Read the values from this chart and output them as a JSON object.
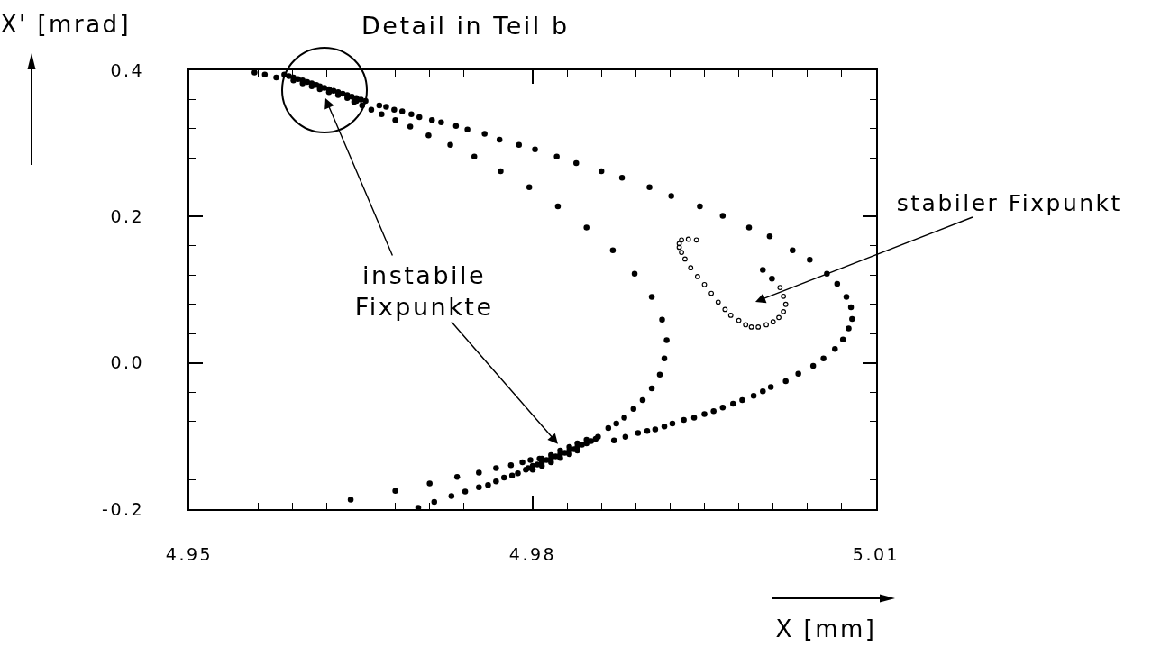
{
  "chart_data": {
    "type": "scatter",
    "xlabel": "X [mm]",
    "ylabel": "X' [mrad]",
    "annotations": [
      "Detail in Teil b",
      {
        "text": "instabile\nFixpunkte",
        "x": 4.9822,
        "y": -0.111
      },
      "stabiler Fixpunkt"
    ],
    "xlim": [
      4.95,
      5.01
    ],
    "xticks": [
      4.95,
      {
        "value": 4.953,
        "label": null
      },
      {
        "value": 4.956,
        "label": null
      },
      {
        "value": 4.959,
        "label": null
      },
      {
        "value": 4.962,
        "label": null
      },
      {
        "value": 4.965,
        "label": null
      },
      {
        "value": 4.968,
        "label": null
      },
      {
        "value": 4.971,
        "label": null
      },
      {
        "value": 4.974,
        "label": null
      },
      {
        "value": 4.977,
        "label": null
      },
      4.98,
      {
        "value": 4.983,
        "label": null
      },
      {
        "value": 4.986,
        "label": null
      },
      {
        "value": 4.989,
        "label": null
      },
      {
        "value": 4.992,
        "label": null
      },
      {
        "value": 4.995,
        "label": null
      },
      {
        "value": 4.998,
        "label": null
      },
      {
        "value": 5.001,
        "label": null
      },
      {
        "value": 5.004,
        "label": null
      },
      {
        "value": 5.007,
        "label": null
      },
      5.01
    ],
    "ylim": [
      -0.2,
      0.4
    ],
    "yticks": [
      -0.2,
      {
        "value": -0.16,
        "label": null
      },
      {
        "value": -0.12,
        "label": null
      },
      {
        "value": -0.08,
        "label": null
      },
      {
        "value": -0.04,
        "label": null
      },
      {
        "value": 0,
        "label": "0.0"
      },
      {
        "value": 0.04,
        "label": null
      },
      {
        "value": 0.08,
        "label": null
      },
      {
        "value": 0.12,
        "label": null
      },
      {
        "value": 0.16,
        "label": null
      },
      0.2,
      {
        "value": 0.24,
        "label": null
      },
      {
        "value": 0.28,
        "label": null
      },
      {
        "value": 0.32,
        "label": null
      },
      {
        "value": 0.36,
        "label": null
      },
      0.4
    ],
    "series": [
      {
        "color": "#000000",
        "marker": "circle",
        "x": [
          4.9557,
          4.9566,
          4.9576,
          4.9583,
          4.9587,
          4.9591,
          4.9595,
          4.9599,
          4.9603,
          4.9607,
          4.9611,
          4.9614,
          4.9618,
          4.9622,
          4.9626,
          4.963,
          4.9634,
          4.9638,
          4.9642,
          4.9646,
          4.965,
          4.9654,
          4.9591,
          4.9599,
          4.9607,
          4.9614,
          4.9622,
          4.963,
          4.9638,
          4.9646,
          4.9644,
          4.9651,
          4.9659,
          4.9668,
          4.968,
          4.9693,
          4.9709,
          4.9728,
          4.9749,
          4.9772,
          4.9797,
          4.9822,
          4.9847,
          4.987,
          4.9889,
          4.9904,
          4.9913,
          4.9917,
          4.9915,
          4.9911,
          4.9904,
          4.9896,
          4.9888,
          4.988,
          4.9873,
          4.9866,
          4.9857,
          4.9666,
          4.9672,
          4.9679,
          4.9686,
          4.9694,
          4.9701,
          4.9712,
          4.972,
          4.9733,
          4.9743,
          4.9758,
          4.9771,
          4.9788,
          4.9802,
          4.9821,
          4.9838,
          4.986,
          4.9878,
          4.9902,
          4.9921,
          4.9946,
          4.9966,
          4.9989,
          5.0007,
          5.0027,
          5.0042,
          5.0057,
          5.0066,
          5.0074,
          5.0078,
          5.0079,
          5.0076,
          5.0071,
          5.0064,
          5.0054,
          5.0045,
          5.0032,
          5.0021,
          5.0008,
          5.0001,
          4.9993,
          4.9983,
          4.9975,
          4.9966,
          4.9958,
          4.995,
          4.9941,
          4.9932,
          4.9922,
          4.9915,
          4.9907,
          4.99,
          4.9892,
          4.9881,
          4.9871,
          5.0001,
          5.0009,
          4.9641,
          4.968,
          4.971,
          4.9734,
          4.9753,
          4.9768,
          4.9781,
          4.9791,
          4.9798,
          4.9806,
          4.97,
          4.9714,
          4.9729,
          4.9741,
          4.9753,
          4.9761,
          4.9768,
          4.9775,
          4.9782,
          4.9787,
          4.9794,
          4.9796,
          4.98,
          4.9804,
          4.9808,
          4.9812,
          4.9816,
          4.982,
          4.9824,
          4.9828,
          4.9832,
          4.9836,
          4.9839,
          4.9843,
          4.9847,
          4.9851,
          4.9855,
          4.9808,
          4.9816,
          4.9824,
          4.9832,
          4.9839,
          4.9847,
          4.98,
          4.9808,
          4.9816,
          4.9824,
          4.9832,
          4.9839
        ],
        "values": [
          0.397,
          0.394,
          0.39,
          0.394,
          0.392,
          0.39,
          0.388,
          0.386,
          0.384,
          0.382,
          0.38,
          0.378,
          0.376,
          0.374,
          0.372,
          0.37,
          0.368,
          0.366,
          0.364,
          0.362,
          0.36,
          0.358,
          0.386,
          0.382,
          0.378,
          0.374,
          0.37,
          0.366,
          0.362,
          0.358,
          0.357,
          0.352,
          0.346,
          0.34,
          0.332,
          0.323,
          0.311,
          0.298,
          0.282,
          0.262,
          0.24,
          0.214,
          0.185,
          0.154,
          0.122,
          0.09,
          0.059,
          0.031,
          0.006,
          -0.016,
          -0.035,
          -0.051,
          -0.063,
          -0.075,
          -0.083,
          -0.089,
          -0.101,
          0.352,
          0.35,
          0.346,
          0.344,
          0.34,
          0.336,
          0.332,
          0.329,
          0.324,
          0.319,
          0.313,
          0.305,
          0.298,
          0.292,
          0.282,
          0.273,
          0.262,
          0.253,
          0.24,
          0.228,
          0.214,
          0.201,
          0.185,
          0.173,
          0.154,
          0.141,
          0.122,
          0.108,
          0.09,
          0.076,
          0.06,
          0.047,
          0.032,
          0.019,
          0.006,
          -0.004,
          -0.015,
          -0.025,
          -0.033,
          -0.039,
          -0.045,
          -0.051,
          -0.056,
          -0.061,
          -0.066,
          -0.07,
          -0.075,
          -0.078,
          -0.083,
          -0.087,
          -0.091,
          -0.093,
          -0.096,
          -0.101,
          -0.106,
          0.127,
          0.115,
          -0.187,
          -0.175,
          -0.165,
          -0.156,
          -0.15,
          -0.144,
          -0.14,
          -0.136,
          -0.133,
          -0.131,
          -0.198,
          -0.19,
          -0.182,
          -0.176,
          -0.17,
          -0.167,
          -0.162,
          -0.157,
          -0.154,
          -0.151,
          -0.146,
          -0.144,
          -0.141,
          -0.139,
          -0.136,
          -0.133,
          -0.131,
          -0.128,
          -0.125,
          -0.123,
          -0.12,
          -0.118,
          -0.115,
          -0.112,
          -0.11,
          -0.107,
          -0.104,
          -0.131,
          -0.126,
          -0.12,
          -0.115,
          -0.11,
          -0.105,
          -0.146,
          -0.141,
          -0.136,
          -0.13,
          -0.125,
          -0.12
        ]
      },
      {
        "color": "#000000",
        "marker": "circle-open",
        "x": [
          4.9943,
          4.9936,
          4.993,
          4.9928,
          4.9928,
          4.993,
          4.9933,
          4.9938,
          4.9944,
          4.995,
          4.9956,
          4.9962,
          4.9968,
          4.9973,
          4.998,
          4.9986,
          4.9991,
          4.9997,
          5.0004,
          5.001,
          5.0015,
          5.0019,
          5.0021,
          5.0019,
          5.0016
        ],
        "values": [
          0.168,
          0.169,
          0.168,
          0.163,
          0.158,
          0.151,
          0.142,
          0.13,
          0.118,
          0.107,
          0.095,
          0.083,
          0.073,
          0.065,
          0.058,
          0.052,
          0.049,
          0.049,
          0.052,
          0.056,
          0.062,
          0.07,
          0.08,
          0.091,
          0.103
        ]
      }
    ]
  }
}
